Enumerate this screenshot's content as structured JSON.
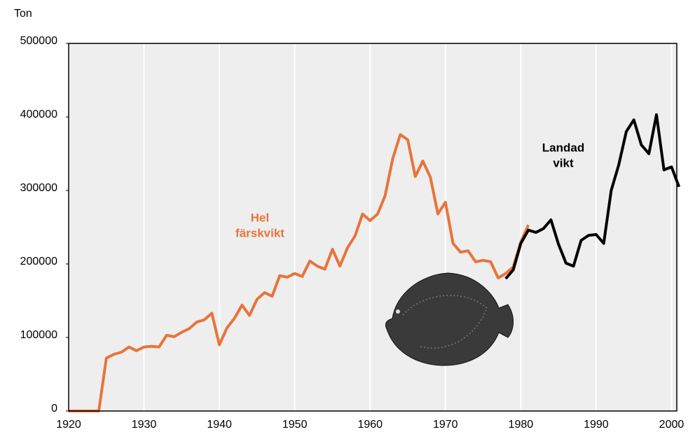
{
  "chart_data": {
    "type": "line",
    "y_label": "Ton",
    "annotations": [
      {
        "lines": [
          "Hel",
          "färskvikt"
        ],
        "color": "#e8743b"
      },
      {
        "lines": [
          "Landad",
          "vikt"
        ],
        "color": "#000000"
      }
    ],
    "series": [
      {
        "name": "Hel färskvikt",
        "color": "#e8743b",
        "x": [
          1920,
          1921,
          1922,
          1923,
          1924,
          1925,
          1926,
          1927,
          1928,
          1929,
          1930,
          1931,
          1932,
          1933,
          1934,
          1935,
          1936,
          1937,
          1938,
          1939,
          1940,
          1941,
          1942,
          1943,
          1944,
          1945,
          1946,
          1947,
          1948,
          1949,
          1950,
          1951,
          1952,
          1953,
          1954,
          1955,
          1956,
          1957,
          1958,
          1959,
          1960,
          1961,
          1962,
          1963,
          1964,
          1965,
          1966,
          1967,
          1968,
          1969,
          1970,
          1971,
          1972,
          1973,
          1974,
          1975,
          1976,
          1977,
          1978,
          1979,
          1980,
          1981
        ],
        "values": [
          0,
          0,
          0,
          0,
          0,
          72000,
          77000,
          80000,
          87000,
          82000,
          87000,
          88000,
          87000,
          103000,
          101000,
          107000,
          112000,
          121000,
          124000,
          133000,
          90000,
          113000,
          126000,
          144000,
          130000,
          152000,
          161000,
          156000,
          184000,
          182000,
          187000,
          183000,
          204000,
          197000,
          193000,
          220000,
          197000,
          222000,
          238000,
          268000,
          259000,
          268000,
          293000,
          343000,
          376000,
          369000,
          319000,
          340000,
          318000,
          268000,
          284000,
          228000,
          216000,
          218000,
          203000,
          205000,
          203000,
          181000,
          187000,
          196000,
          230000,
          253000
        ]
      },
      {
        "name": "Landad vikt",
        "color": "#000000",
        "x": [
          1978,
          1979,
          1980,
          1981,
          1982,
          1983,
          1984,
          1985,
          1986,
          1987,
          1988,
          1989,
          1990,
          1991,
          1992,
          1993,
          1994,
          1995,
          1996,
          1997,
          1998,
          1999,
          2000,
          2001
        ],
        "values": [
          180000,
          192000,
          228000,
          246000,
          243000,
          248000,
          260000,
          227000,
          201000,
          197000,
          232000,
          239000,
          240000,
          228000,
          300000,
          335000,
          380000,
          396000,
          362000,
          350000,
          403000,
          328000,
          332000,
          305000
        ]
      }
    ],
    "xlim": [
      1920,
      2000.7
    ],
    "xticks": [
      1920,
      1930,
      1940,
      1950,
      1960,
      1970,
      1980,
      1990,
      2000
    ],
    "ylim": [
      0,
      500000
    ],
    "yticks": [
      0,
      100000,
      200000,
      300000,
      400000,
      500000
    ],
    "grid": true
  }
}
